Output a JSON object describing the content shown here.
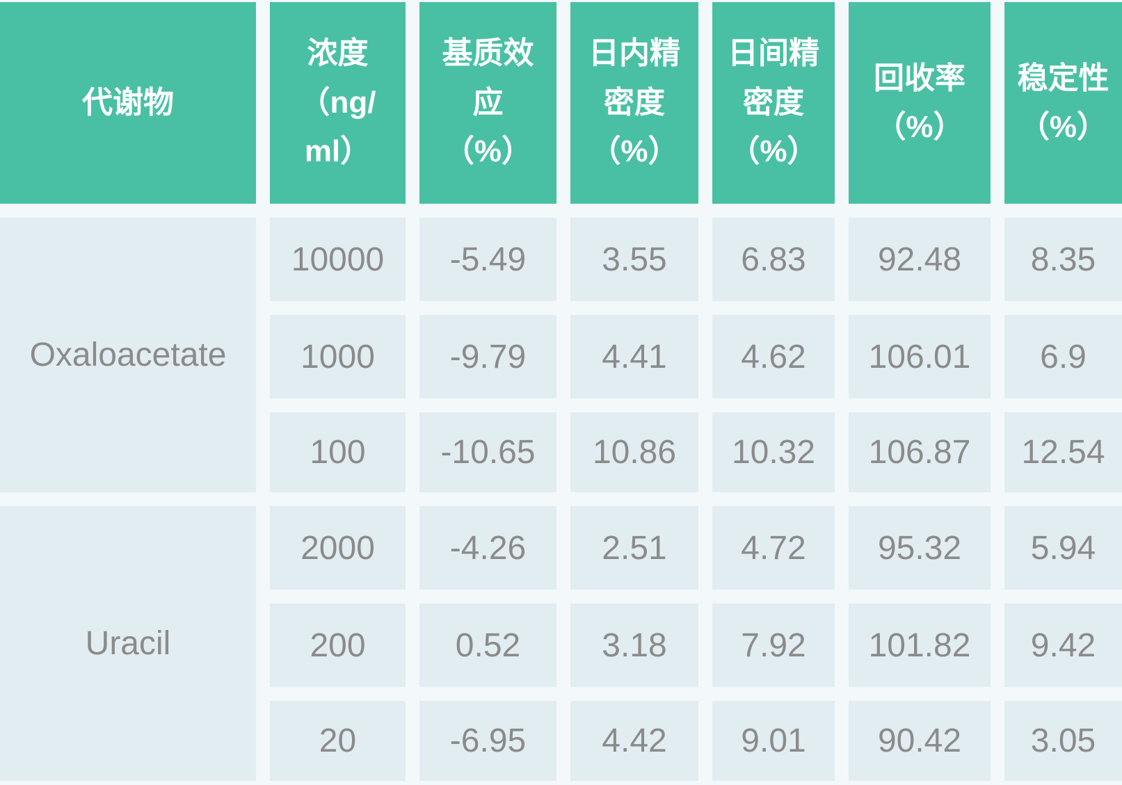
{
  "colors": {
    "header_bg": "#49C0A4",
    "header_text": "#FFFFFF",
    "cell_bg": "#E2EDF2",
    "cell_text": "#8B8B8B",
    "gap_bg": "#F3F8FA"
  },
  "table": {
    "headers": {
      "metabolite": "代谢物",
      "concentration": "浓度\n（ng/\nml）",
      "matrix_effect": "基质效\n应\n（%）",
      "intraday_precision": "日内精\n密度\n（%）",
      "interday_precision": "日间精\n密度\n（%）",
      "recovery": "回收率\n（%）",
      "stability": "稳定性\n（%）"
    },
    "sections": [
      {
        "metabolite": "Oxaloacetate",
        "rows": [
          {
            "concentration": "10000",
            "matrix_effect": "-5.49",
            "intraday": "3.55",
            "interday": "6.83",
            "recovery": "92.48",
            "stability": "8.35"
          },
          {
            "concentration": "1000",
            "matrix_effect": "-9.79",
            "intraday": "4.41",
            "interday": "4.62",
            "recovery": "106.01",
            "stability": "6.9"
          },
          {
            "concentration": "100",
            "matrix_effect": "-10.65",
            "intraday": "10.86",
            "interday": "10.32",
            "recovery": "106.87",
            "stability": "12.54"
          }
        ]
      },
      {
        "metabolite": "Uracil",
        "rows": [
          {
            "concentration": "2000",
            "matrix_effect": "-4.26",
            "intraday": "2.51",
            "interday": "4.72",
            "recovery": "95.32",
            "stability": "5.94"
          },
          {
            "concentration": "200",
            "matrix_effect": "0.52",
            "intraday": "3.18",
            "interday": "7.92",
            "recovery": "101.82",
            "stability": "9.42"
          },
          {
            "concentration": "20",
            "matrix_effect": "-6.95",
            "intraday": "4.42",
            "interday": "9.01",
            "recovery": "90.42",
            "stability": "3.05"
          }
        ]
      }
    ]
  },
  "chart_data": {
    "type": "table",
    "title": "",
    "columns": [
      "代谢物",
      "浓度（ng/ml）",
      "基质效应（%）",
      "日内精密度（%）",
      "日间精密度（%）",
      "回收率（%）",
      "稳定性（%）"
    ],
    "rows": [
      [
        "Oxaloacetate",
        10000,
        -5.49,
        3.55,
        6.83,
        92.48,
        8.35
      ],
      [
        "Oxaloacetate",
        1000,
        -9.79,
        4.41,
        4.62,
        106.01,
        6.9
      ],
      [
        "Oxaloacetate",
        100,
        -10.65,
        10.86,
        10.32,
        106.87,
        12.54
      ],
      [
        "Uracil",
        2000,
        -4.26,
        2.51,
        4.72,
        95.32,
        5.94
      ],
      [
        "Uracil",
        200,
        0.52,
        3.18,
        7.92,
        101.82,
        9.42
      ],
      [
        "Uracil",
        20,
        -6.95,
        4.42,
        9.01,
        90.42,
        3.05
      ]
    ],
    "layout": {
      "header_row": true,
      "rowspan_first_column": 3,
      "grid": "gapped-cells"
    }
  }
}
